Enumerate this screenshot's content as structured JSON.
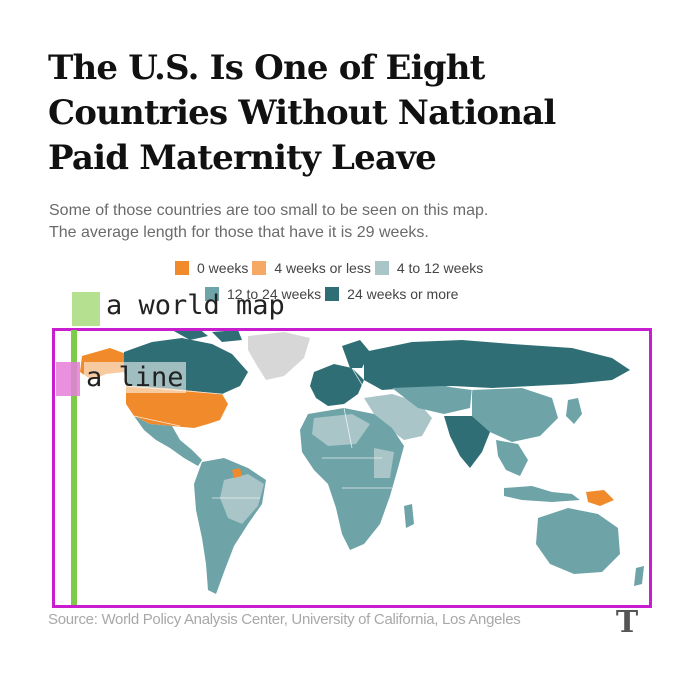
{
  "title_lines": [
    "The U.S. Is One of Eight",
    "Countries Without National",
    "Paid Maternity Leave"
  ],
  "subtitle_lines": [
    "Some of those countries are too small to be seen on this map.",
    "The average length for those that have it is 29 weeks."
  ],
  "legend": [
    {
      "label": "0 weeks",
      "color": "#f08a2a"
    },
    {
      "label": "4 weeks or less",
      "color": "#f5a965"
    },
    {
      "label": "4 to 12 weeks",
      "color": "#a9c5c8"
    },
    {
      "label": "12 to 24 weeks",
      "color": "#6ea3a8"
    },
    {
      "label": "24 weeks or more",
      "color": "#2e6e74"
    }
  ],
  "map": {
    "no_data_color": "#d7d7d7",
    "regions": [
      {
        "name": "Canada",
        "category": "24 weeks or more"
      },
      {
        "name": "United States",
        "category": "0 weeks"
      },
      {
        "name": "Mexico",
        "category": "12 to 24 weeks"
      },
      {
        "name": "Greenland",
        "category": "no data"
      },
      {
        "name": "Suriname",
        "category": "0 weeks"
      },
      {
        "name": "Papua New Guinea",
        "category": "0 weeks"
      },
      {
        "name": "Russia",
        "category": "24 weeks or more"
      },
      {
        "name": "India",
        "category": "24 weeks or more"
      },
      {
        "name": "Australia",
        "category": "12 to 24 weeks"
      }
    ]
  },
  "annotations": {
    "world_map": "a world map",
    "line": "a line"
  },
  "source": "Source: World Policy Analysis Center, University of California, Los Angeles",
  "logo_glyph": "T"
}
